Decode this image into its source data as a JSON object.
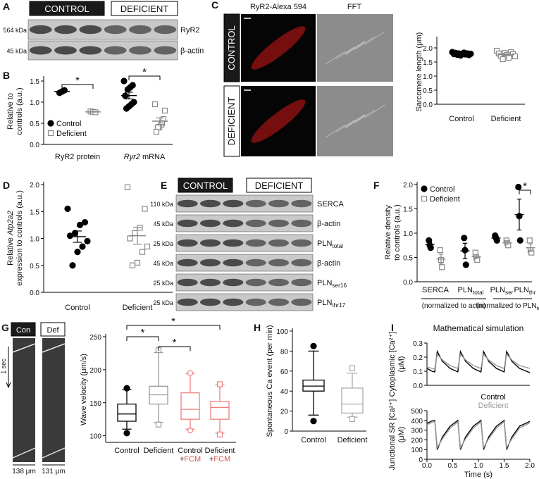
{
  "figure": {
    "letters": [
      "A",
      "B",
      "C",
      "D",
      "E",
      "F",
      "G",
      "H",
      "I"
    ],
    "blot_a": {
      "groups": [
        "CONTROL",
        "DEFICIENT"
      ],
      "kda": [
        "564 kDa",
        "45 kDa"
      ],
      "proteins": [
        "RyR2",
        "β-actin"
      ]
    },
    "images_c": {
      "columns": [
        "RyR2-Alexa 594",
        "FFT"
      ],
      "rows": [
        "CONTROL",
        "DEFICIENT"
      ]
    },
    "blot_e": {
      "groups": [
        "CONTROL",
        "DEFICIENT"
      ],
      "kda": [
        "110 kDa",
        "45 kDa",
        "25 kDa",
        "45 kDa",
        "25 kDa",
        "25 kDa"
      ],
      "proteins": [
        "SERCA",
        "β-actin",
        [
          [
            "PLN",
            {
              "text": "total",
              "style": "sub"
            }
          ]
        ],
        "β-actin",
        [
          [
            "PLN",
            {
              "text": "ser16",
              "style": "sub"
            }
          ]
        ],
        [
          [
            "PLN",
            {
              "text": "thr17",
              "style": "sub"
            }
          ]
        ]
      ]
    },
    "kymo_g": {
      "labels": [
        "Con",
        "Def"
      ],
      "time": "1 sec",
      "widths": [
        "138 μm",
        "131 μm"
      ]
    }
  },
  "chart_data": [
    {
      "type": "dot",
      "ylabel": [
        "Relative to",
        "controls (a.u.)"
      ],
      "categories": [
        "RyR2 protein",
        [
          [
            {
              "text": "Ryr2",
              "style": "italic"
            },
            " mRNA"
          ]
        ]
      ],
      "ylim": [
        0,
        1.55
      ],
      "yticks": [
        {
          "value": 0,
          "label": "0.0"
        },
        0.5,
        {
          "value": 1,
          "label": "1.0"
        },
        1.5
      ],
      "legend": "lower left",
      "series": [
        {
          "name": "Control",
          "color": "#000000",
          "marker": "circle",
          "filled": true,
          "values": [
            [
              1.22,
              1.25,
              1.28
            ],
            [
              1.5,
              1.4,
              1.35,
              1.3,
              1.15,
              1.0,
              0.95,
              0.9,
              0.85
            ]
          ]
        },
        {
          "name": "Deficient",
          "color": "#888888",
          "marker": "square",
          "filled": false,
          "values": [
            [
              0.78,
              0.77,
              0.76
            ],
            [
              0.95,
              0.8,
              0.6,
              0.5,
              0.45,
              0.4,
              0.4,
              0.3
            ]
          ]
        }
      ],
      "annotations": [
        "*",
        "*"
      ]
    },
    {
      "type": "dot",
      "ylabel": "Sarcomere length (μm)",
      "categories": [
        "Control",
        "Deficient"
      ],
      "ylim": [
        0,
        2.3
      ],
      "yticks": [
        {
          "value": 0,
          "label": "0.0"
        },
        0.5,
        {
          "value": 1,
          "label": "1.0"
        },
        1.5,
        {
          "value": 2,
          "label": "2.0"
        }
      ],
      "series": [
        {
          "color": "#000000",
          "marker": "circle",
          "filled": true,
          "values": [
            [
              1.85,
              1.83,
              1.82,
              1.8,
              1.8,
              1.79,
              1.78,
              1.78,
              1.77,
              1.76,
              1.75,
              1.73
            ],
            []
          ]
        },
        {
          "color": "#888888",
          "marker": "square",
          "filled": false,
          "values": [
            [],
            [
              1.9,
              1.85,
              1.82,
              1.8,
              1.78,
              1.75,
              1.72,
              1.7,
              1.65,
              1.6
            ]
          ]
        }
      ]
    },
    {
      "type": "dot",
      "ylabel": [
        [
          "Relative ",
          {
            "text": "Atp2a2",
            "style": "italic"
          }
        ],
        "expression to controls (a.u.)"
      ],
      "categories": [
        "Control",
        "Deficient"
      ],
      "ylim": [
        0,
        2.0
      ],
      "yticks": [
        {
          "value": 0,
          "label": "0.0"
        },
        0.5,
        {
          "value": 1,
          "label": "1.0"
        },
        1.5,
        {
          "value": 2,
          "label": "2.0"
        }
      ],
      "series": [
        {
          "color": "#000000",
          "marker": "circle",
          "filled": true,
          "values": [
            [
              1.55,
              1.3,
              1.25,
              1.1,
              1.05,
              0.95,
              0.85,
              0.75,
              0.5
            ],
            []
          ]
        },
        {
          "color": "#888888",
          "marker": "square",
          "filled": false,
          "values": [
            [],
            [
              1.95,
              1.55,
              1.2,
              1.1,
              1.0,
              0.85,
              0.75,
              0.55,
              0.5
            ]
          ]
        }
      ]
    },
    {
      "type": "dot",
      "ylabel": [
        "Relative density",
        "to controls (a.u.)"
      ],
      "categories": [
        "SERCA",
        [
          [
            "PLN",
            {
              "text": "total",
              "style": "sub"
            }
          ]
        ],
        [
          [
            "PLN",
            {
              "text": "ser",
              "style": "sub"
            }
          ]
        ],
        [
          [
            "PLN",
            {
              "text": "thr",
              "style": "sub"
            }
          ]
        ]
      ],
      "groups": [
        "(normalized to actin)",
        [
          [
            "(normalized to PLN",
            {
              "text": "total",
              "style": "sub"
            },
            ")"
          ]
        ]
      ],
      "ylim": [
        0,
        2.0
      ],
      "yticks": [
        {
          "value": 0,
          "label": "0.0"
        },
        0.5,
        {
          "value": 1,
          "label": "1.0"
        },
        1.5,
        {
          "value": 2,
          "label": "2.0"
        }
      ],
      "legend": "upper left",
      "series": [
        {
          "name": "Control",
          "color": "#000000",
          "marker": "circle",
          "filled": true,
          "values": [
            [
              0.85,
              0.75,
              0.7
            ],
            [
              0.9,
              0.65,
              0.35
            ],
            [
              0.95,
              0.9,
              0.85
            ],
            [
              1.95,
              1.35,
              0.85
            ]
          ]
        },
        {
          "name": "Deficient",
          "color": "#888888",
          "marker": "square",
          "filled": false,
          "values": [
            [
              0.65,
              0.45,
              0.3
            ],
            [
              0.6,
              0.5,
              0.45
            ],
            [
              0.85,
              0.8,
              0.75
            ],
            [
              0.85,
              0.65,
              0.6
            ]
          ]
        }
      ],
      "annotations": [
        "*"
      ]
    },
    {
      "type": "box",
      "ylabel": "Wave velocity (μm/s)",
      "categories": [
        "Control",
        "Deficient",
        [
          "Control",
          [
            "+",
            {
              "text": "FCM",
              "color": "#d9534f"
            }
          ]
        ],
        [
          "Deficient",
          [
            "+",
            {
              "text": "FCM",
              "color": "#d9534f"
            }
          ]
        ]
      ],
      "ylim": [
        90,
        250
      ],
      "yticks": [
        100,
        150,
        200,
        250
      ],
      "boxes": [
        {
          "color": "#000000",
          "marker": "circle",
          "filled": true,
          "whislo": 110,
          "q1": 122,
          "med": 133,
          "q3": 148,
          "whishi": 170,
          "fliers": [
            172,
            104
          ]
        },
        {
          "color": "#999999",
          "marker": "square",
          "filled": false,
          "whislo": 120,
          "q1": 148,
          "med": 162,
          "q3": 175,
          "whishi": 226,
          "fliers": [
            230,
            117
          ]
        },
        {
          "color": "#f08080",
          "marker": "circle",
          "filled": false,
          "whislo": 110,
          "q1": 125,
          "med": 140,
          "q3": 165,
          "whishi": 194,
          "fliers": [
            195,
            108
          ]
        },
        {
          "color": "#f08080",
          "marker": "square",
          "filled": false,
          "whislo": 104,
          "q1": 125,
          "med": 143,
          "q3": 152,
          "whishi": 177,
          "fliers": [
            178,
            102
          ]
        }
      ],
      "annotations": [
        "*",
        "*",
        "*"
      ]
    },
    {
      "type": "box",
      "ylabel": "Spontaneous Ca event (per min)",
      "categories": [
        "Control",
        "Deficient"
      ],
      "ylim": [
        0,
        100
      ],
      "yticks": [
        0,
        20,
        40,
        60,
        80,
        100
      ],
      "boxes": [
        {
          "color": "#000000",
          "marker": "circle",
          "filled": true,
          "whislo": 16,
          "q1": 40,
          "med": 45,
          "q3": 51,
          "whishi": 80,
          "fliers": [
            85,
            10
          ]
        },
        {
          "color": "#aaaaaa",
          "marker": "square",
          "filled": false,
          "whislo": 14,
          "q1": 18,
          "med": 27,
          "q3": 43,
          "whishi": 58,
          "fliers": [
            63,
            12
          ]
        }
      ]
    },
    {
      "type": "line",
      "title": "Mathematical simulation",
      "ylabel": [
        "Cytoplasmic [Ca²⁺]",
        "(μM)"
      ],
      "x": [
        0,
        0.1,
        0.15,
        0.2,
        0.3,
        0.45,
        0.6,
        0.65,
        0.75,
        0.9,
        1.05,
        1.1,
        1.2,
        1.35,
        1.5,
        1.55,
        1.65,
        1.8,
        2.0
      ],
      "xlim": [
        0,
        2.0
      ],
      "ylim": [
        0,
        0.3
      ],
      "yticks": [
        {
          "value": 0,
          "label": "0.0"
        },
        0.1,
        0.2,
        0.3
      ],
      "legend": "below",
      "series": [
        {
          "name": "Control",
          "color": "#000000",
          "values": [
            0.12,
            0.1,
            0.095,
            0.24,
            0.17,
            0.12,
            0.095,
            0.24,
            0.17,
            0.12,
            0.095,
            0.24,
            0.17,
            0.12,
            0.095,
            0.24,
            0.17,
            0.12,
            0.09
          ]
        },
        {
          "name": "Deficient",
          "color": "#999999",
          "values": [
            0.13,
            0.12,
            0.115,
            0.22,
            0.18,
            0.14,
            0.12,
            0.22,
            0.18,
            0.14,
            0.12,
            0.22,
            0.18,
            0.14,
            0.12,
            0.22,
            0.18,
            0.14,
            0.12
          ]
        }
      ]
    },
    {
      "type": "line",
      "ylabel": [
        "Junctional SR [Ca²⁺]",
        "(μM)"
      ],
      "xlabel": "Time (s)",
      "x": [
        0,
        0.1,
        0.15,
        0.2,
        0.3,
        0.45,
        0.6,
        0.65,
        0.75,
        0.9,
        1.05,
        1.1,
        1.2,
        1.35,
        1.5,
        1.55,
        1.65,
        1.8,
        2.0
      ],
      "xlim": [
        0,
        2.0
      ],
      "xticks": [
        {
          "value": 0,
          "label": "0.0"
        },
        0.5,
        {
          "value": 1,
          "label": "1.0"
        },
        1.5,
        {
          "value": 2,
          "label": "2.0"
        }
      ],
      "ylim": [
        0,
        500
      ],
      "yticks": [
        0,
        100,
        200,
        300,
        400,
        500
      ],
      "series": [
        {
          "color": "#000000",
          "values": [
            370,
            395,
            400,
            100,
            230,
            340,
            400,
            100,
            230,
            340,
            400,
            100,
            230,
            340,
            400,
            100,
            230,
            340,
            390
          ]
        },
        {
          "color": "#999999",
          "values": [
            355,
            380,
            390,
            120,
            210,
            320,
            385,
            120,
            210,
            320,
            385,
            120,
            210,
            320,
            385,
            120,
            210,
            320,
            375
          ]
        }
      ]
    }
  ]
}
